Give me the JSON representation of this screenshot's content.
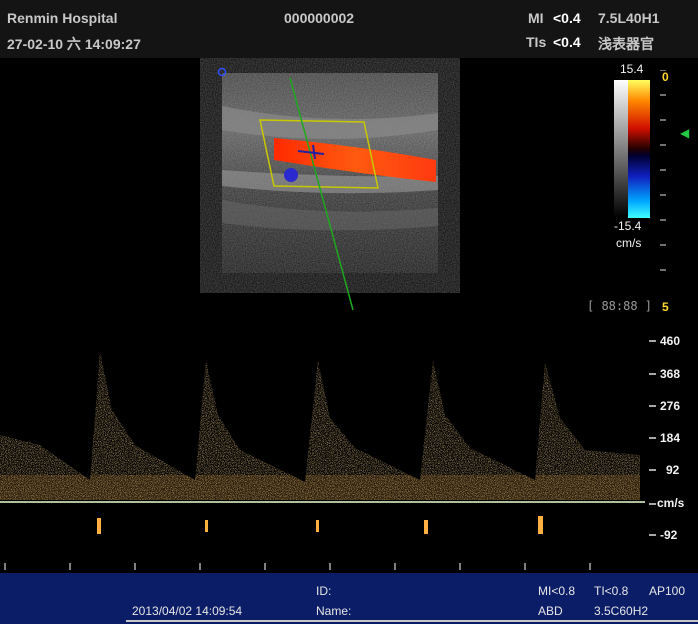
{
  "header": {
    "hospital": "Renmin Hospital",
    "datetime": "27-02-10 六 14:09:27",
    "patient_code": "000000002",
    "mi_label": "MI",
    "mi_value": "<0.4",
    "tis_label": "TIs",
    "tis_value": "<0.4",
    "probe": "7.5L40H1",
    "preset": "浅表器官"
  },
  "color_scale": {
    "top_value": "15.4",
    "bottom_value": "-15.4",
    "unit": "cm/s",
    "baseline_label": "0"
  },
  "depth": {
    "timer": "[ 88:88 ]",
    "bottom_label": "5"
  },
  "spectral_scale": {
    "labels": [
      "460",
      "368",
      "276",
      "184",
      "92"
    ],
    "unit": "cm/s",
    "negative_label": "-92"
  },
  "footer": {
    "date": "2013/04/02 14:09:54",
    "id_label": "ID:",
    "name_label": "Name:",
    "mi": "MI<0.8",
    "ti": "TI<0.8",
    "ap": "AP100",
    "exam": "ABD",
    "probe": "3.5C60H2"
  },
  "colors": {
    "flow_red": "#ff3a10",
    "flow_blue": "#2a2ad0",
    "sample_box": "#c8c800",
    "doppler_line": "#1ea81e",
    "spectrum": "#ffb040",
    "footer_bg": "#0b1d66"
  }
}
